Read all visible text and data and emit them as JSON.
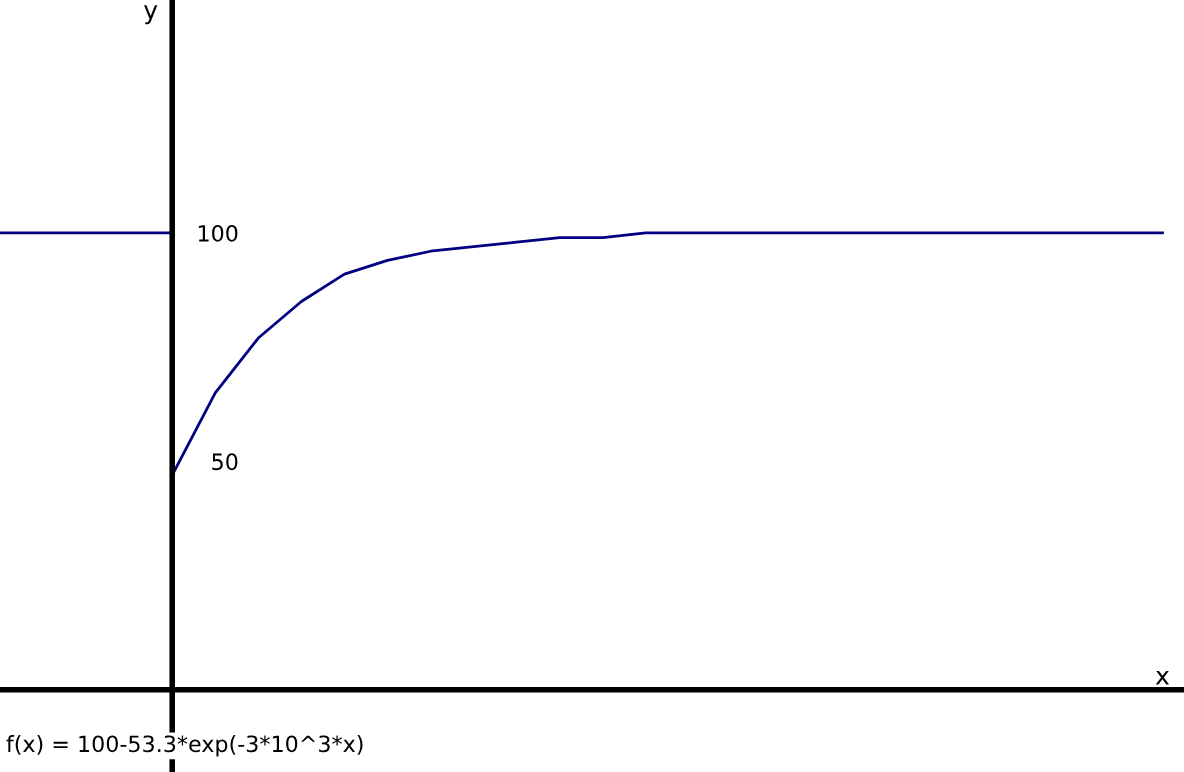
{
  "chart_data": {
    "type": "line",
    "xlabel": "x",
    "ylabel": "y",
    "categories": [
      null,
      null,
      null,
      null,
      null,
      null,
      null,
      null,
      null,
      null,
      null,
      null,
      null,
      null,
      null,
      null,
      null,
      null,
      null,
      null,
      null,
      null,
      null,
      null,
      null,
      null,
      null,
      null
    ],
    "series": [
      {
        "color": "#000080",
        "values": [
          100,
          100,
          100,
          100,
          100,
          null,
          null,
          null,
          null,
          null,
          null,
          null,
          null,
          null,
          null,
          null,
          null,
          null,
          null,
          null,
          null,
          null,
          null,
          null,
          null,
          null,
          null,
          null
        ]
      },
      {
        "color": "#000080",
        "values": [
          null,
          null,
          null,
          null,
          47,
          65,
          77,
          85,
          91,
          94,
          96,
          97,
          98,
          99,
          99,
          100,
          100,
          100,
          100,
          100,
          100,
          100,
          100,
          100,
          100,
          100,
          100,
          100
        ]
      }
    ],
    "ylim": [
      -18,
      151
    ],
    "yticks": [
      50,
      100
    ],
    "grid": false,
    "marker": "none",
    "line_style": "solid",
    "annotations": [
      "f(x) = 100-53.3*exp(-3*10^3*x)"
    ]
  }
}
